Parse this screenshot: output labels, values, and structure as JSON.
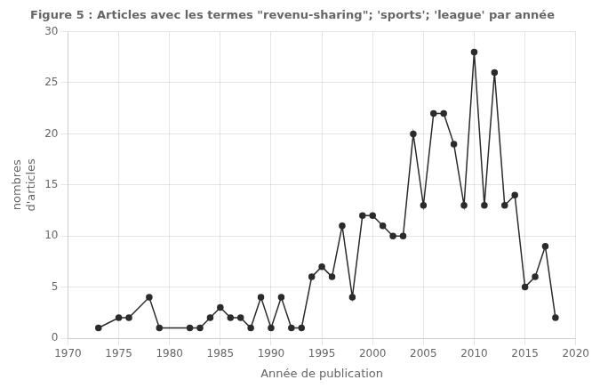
{
  "chart_data": {
    "type": "line",
    "title": "Figure 5 : Articles avec les termes \"revenu-sharing\"; 'sports'; 'league' par année",
    "xlabel": "Année de publication",
    "ylabel": [
      "nombres",
      "d'articles"
    ],
    "x": [
      1973,
      1975,
      1976,
      1978,
      1979,
      1982,
      1983,
      1984,
      1985,
      1986,
      1987,
      1988,
      1989,
      1990,
      1991,
      1992,
      1993,
      1994,
      1995,
      1996,
      1997,
      1998,
      1999,
      2000,
      2001,
      2002,
      2003,
      2004,
      2005,
      2006,
      2007,
      2008,
      2009,
      2010,
      2011,
      2012,
      2013,
      2014,
      2015,
      2016,
      2017,
      2018
    ],
    "values": [
      1,
      2,
      2,
      4,
      1,
      1,
      1,
      2,
      3,
      2,
      2,
      1,
      4,
      1,
      4,
      1,
      1,
      6,
      7,
      6,
      11,
      4,
      12,
      12,
      11,
      10,
      10,
      20,
      13,
      22,
      22,
      19,
      13,
      28,
      13,
      26,
      13,
      14,
      5,
      6,
      9,
      2
    ],
    "color": "#2b2b2b",
    "marker": "circle",
    "xlim": [
      1970,
      2020
    ],
    "ylim": [
      0,
      30
    ],
    "xticks": [
      1970,
      1975,
      1980,
      1985,
      1990,
      1995,
      2000,
      2005,
      2010,
      2015,
      2020
    ],
    "yticks": [
      0,
      5,
      10,
      15,
      20,
      25,
      30
    ],
    "grid": true
  }
}
